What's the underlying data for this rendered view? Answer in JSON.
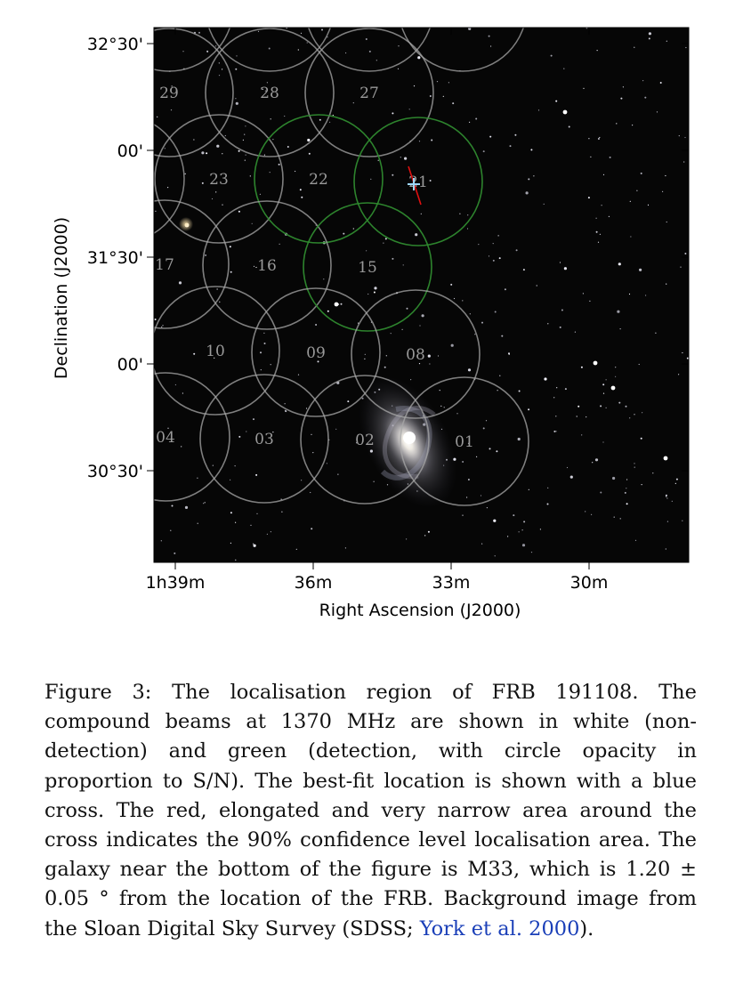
{
  "figure": {
    "x_axis_label": "Right Ascension (J2000)",
    "y_axis_label": "Declination (J2000)",
    "x_ticks": [
      "1h39m",
      "36m",
      "33m",
      "30m"
    ],
    "y_ticks": [
      "32°30'",
      "00'",
      "31°30'",
      "00'",
      "30°30'"
    ],
    "beams": [
      {
        "id": "29",
        "detection": false,
        "label_shown": true
      },
      {
        "id": "28",
        "detection": false,
        "label_shown": true
      },
      {
        "id": "27",
        "detection": false,
        "label_shown": true
      },
      {
        "id": "23",
        "detection": false,
        "label_shown": true
      },
      {
        "id": "22",
        "detection": true,
        "label_shown": true
      },
      {
        "id": "21",
        "detection": true,
        "label_shown": true
      },
      {
        "id": "17",
        "detection": false,
        "label_shown": true
      },
      {
        "id": "16",
        "detection": false,
        "label_shown": true
      },
      {
        "id": "15",
        "detection": true,
        "label_shown": true
      },
      {
        "id": "10",
        "detection": false,
        "label_shown": true
      },
      {
        "id": "09",
        "detection": false,
        "label_shown": true
      },
      {
        "id": "08",
        "detection": false,
        "label_shown": true
      },
      {
        "id": "04",
        "detection": false,
        "label_shown": true
      },
      {
        "id": "03",
        "detection": false,
        "label_shown": true
      },
      {
        "id": "02",
        "detection": false,
        "label_shown": true
      },
      {
        "id": "01",
        "detection": false,
        "label_shown": true
      }
    ],
    "colors": {
      "sky": "#060606",
      "non_detection": "#a8a8a8",
      "detection": "#2f8a2f",
      "best_fit": "#9fd8ff",
      "confidence_area": "#e01010"
    }
  },
  "caption": {
    "lead": "Figure 3: The localisation region of FRB 191108. The compound beams at 1370 MHz are shown in white (non-detection) and green (detection, with circle opacity in proportion to S/N). The best-fit location is shown with a blue cross. The red, elongated and very narrow area around the cross indicates the 90% confidence level localisation area. The galaxy near the bottom of the figure is M33, which is 1.20 ± 0.05 ° from the location of the FRB. Background image from the Sloan Digital Sky Survey (SDSS; ",
    "citation": "York et al. 2000",
    "tail": ")."
  }
}
